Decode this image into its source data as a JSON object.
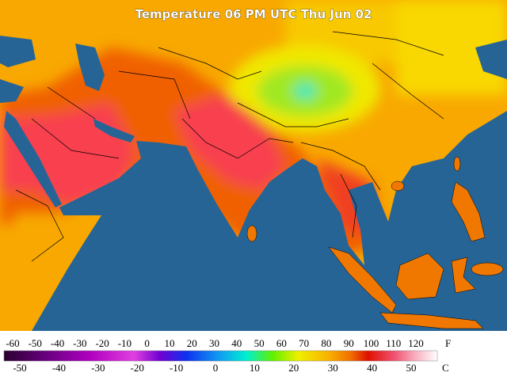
{
  "title": "Temperature 06 PM UTC Thu Jun 02",
  "legend": {
    "fahrenheit": {
      "unit": "F",
      "ticks": [
        -60,
        -50,
        -40,
        -30,
        -20,
        -10,
        0,
        10,
        20,
        30,
        40,
        50,
        60,
        70,
        80,
        90,
        100,
        110,
        120
      ]
    },
    "celsius": {
      "unit": "C",
      "ticks": [
        -50,
        -40,
        -30,
        -20,
        -10,
        0,
        10,
        20,
        30,
        40,
        50
      ]
    }
  }
}
